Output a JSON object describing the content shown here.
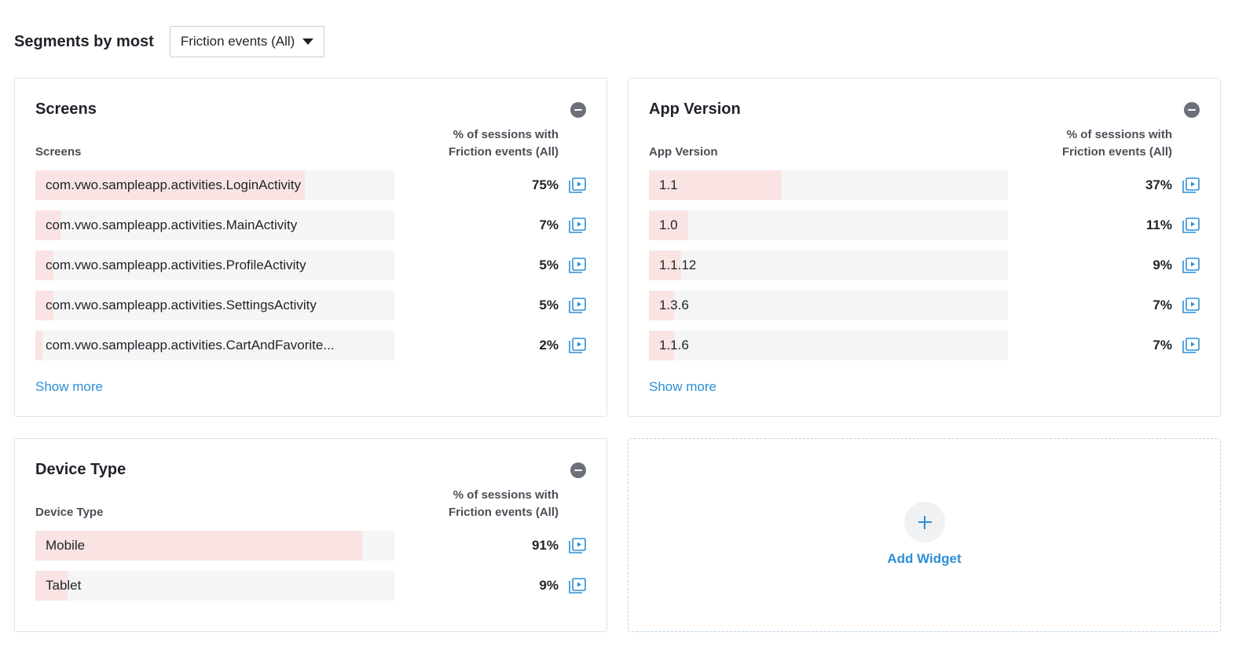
{
  "header": {
    "title": "Segments by most",
    "dropdown_value": "Friction events (All)"
  },
  "widgets": [
    {
      "title": "Screens",
      "column_label": "Screens",
      "metric_label_line1": "% of sessions with",
      "metric_label_line2": "Friction events (All)",
      "show_more": "Show more",
      "rows": [
        {
          "label": "com.vwo.sampleapp.activities.LoginActivity",
          "percent": "75%",
          "fraction": 0.75
        },
        {
          "label": "com.vwo.sampleapp.activities.MainActivity",
          "percent": "7%",
          "fraction": 0.07
        },
        {
          "label": "com.vwo.sampleapp.activities.ProfileActivity",
          "percent": "5%",
          "fraction": 0.05
        },
        {
          "label": "com.vwo.sampleapp.activities.SettingsActivity",
          "percent": "5%",
          "fraction": 0.05
        },
        {
          "label": "com.vwo.sampleapp.activities.CartAndFavorite...",
          "percent": "2%",
          "fraction": 0.02
        }
      ]
    },
    {
      "title": "App Version",
      "column_label": "App Version",
      "metric_label_line1": "% of sessions with",
      "metric_label_line2": "Friction events (All)",
      "show_more": "Show more",
      "rows": [
        {
          "label": "1.1",
          "percent": "37%",
          "fraction": 0.37
        },
        {
          "label": "1.0",
          "percent": "11%",
          "fraction": 0.11
        },
        {
          "label": "1.1.12",
          "percent": "9%",
          "fraction": 0.09
        },
        {
          "label": "1.3.6",
          "percent": "7%",
          "fraction": 0.07
        },
        {
          "label": "1.1.6",
          "percent": "7%",
          "fraction": 0.07
        }
      ]
    },
    {
      "title": "Device Type",
      "column_label": "Device Type",
      "metric_label_line1": "% of sessions with",
      "metric_label_line2": "Friction events (All)",
      "rows": [
        {
          "label": "Mobile",
          "percent": "91%",
          "fraction": 0.91
        },
        {
          "label": "Tablet",
          "percent": "9%",
          "fraction": 0.09
        }
      ]
    }
  ],
  "add_widget": {
    "label": "Add Widget",
    "icon": "plus-icon"
  },
  "icons": {
    "remove": "minus-circle-icon",
    "recordings": "play-recording-icon"
  },
  "colors": {
    "accent": "#2d8fd5",
    "bar_fill": "#f9e3e3",
    "bar_track": "#f5f5f5",
    "remove_button": "#6b7079"
  }
}
